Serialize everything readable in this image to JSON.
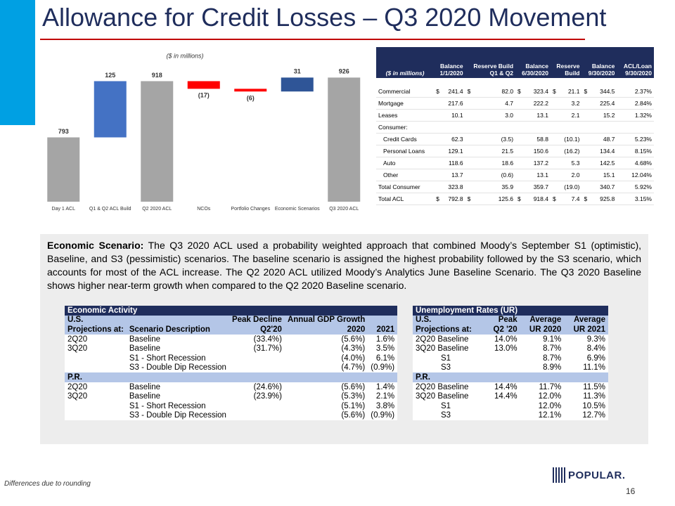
{
  "header": {
    "title": "Allowance for Credit Losses – Q3 2020 Movement"
  },
  "chart_data": {
    "type": "waterfall",
    "subtitle": "($ in millions)",
    "categories": [
      "Day 1 ACL",
      "Q1 & Q2 ACL Build",
      "Q2 2020 ACL",
      "NCOs",
      "Portfolio Changes",
      "Economic Scenarios",
      "Q3 2020 ACL"
    ],
    "values": [
      793,
      125,
      918,
      -17,
      -6,
      31,
      926
    ],
    "value_labels": [
      "793",
      "125",
      "918",
      "(17)",
      "(6)",
      "31",
      "926"
    ],
    "totals": [
      true,
      false,
      true,
      false,
      false,
      false,
      true
    ],
    "colors": [
      "#a5a5a5",
      "#4472c4",
      "#a5a5a5",
      "#ff0000",
      "#ff0000",
      "#2f5597",
      "#a5a5a5"
    ],
    "ylim": [
      650,
      1000
    ]
  },
  "acl_table": {
    "columns": [
      {
        "lines": [
          "($ in millions)"
        ]
      },
      {
        "lines": [
          "Balance",
          "1/1/2020"
        ]
      },
      {
        "lines": [
          "Reserve Build",
          "Q1 & Q2"
        ]
      },
      {
        "lines": [
          "Balance",
          "6/30/2020"
        ]
      },
      {
        "lines": [
          "Reserve",
          "Build"
        ]
      },
      {
        "lines": [
          "Balance",
          "9/30/2020"
        ]
      },
      {
        "lines": [
          "ACL/Loan",
          "9/30/2020"
        ]
      }
    ],
    "rows": [
      {
        "label": "Commercial",
        "cells": [
          {
            "sign": "$",
            "value": "241.4"
          },
          {
            "sign": "$",
            "value": "82.0"
          },
          {
            "sign": "$",
            "value": "323.4"
          },
          {
            "sign": "$",
            "value": "21.1"
          },
          {
            "sign": "$",
            "value": "344.5"
          },
          "2.37%"
        ]
      },
      {
        "label": "Mortgage",
        "cells": [
          "217.6",
          "4.7",
          "222.2",
          "3.2",
          "225.4",
          "2.84%"
        ]
      },
      {
        "label": "Leases",
        "cells": [
          "10.1",
          "3.0",
          "13.1",
          "2.1",
          "15.2",
          "1.32%"
        ]
      },
      {
        "label": "Consumer:",
        "cells": []
      },
      {
        "label": "Credit Cards",
        "indent": true,
        "cells": [
          "62.3",
          "(3.5)",
          "58.8",
          "(10.1)",
          "48.7",
          "5.23%"
        ]
      },
      {
        "label": "Personal Loans",
        "indent": true,
        "cells": [
          "129.1",
          "21.5",
          "150.6",
          "(16.2)",
          "134.4",
          "8.15%"
        ]
      },
      {
        "label": "Auto",
        "indent": true,
        "cells": [
          "118.6",
          "18.6",
          "137.2",
          "5.3",
          "142.5",
          "4.68%"
        ]
      },
      {
        "label": "Other",
        "indent": true,
        "cells": [
          "13.7",
          "(0.6)",
          "13.1",
          "2.0",
          "15.1",
          "12.04%"
        ]
      },
      {
        "label": "Total Consumer",
        "cells": [
          "323.8",
          "35.9",
          "359.7",
          "(19.0)",
          "340.7",
          "5.92%"
        ]
      },
      {
        "label": "Total ACL",
        "cells": [
          {
            "sign": "$",
            "value": "792.8"
          },
          {
            "sign": "$",
            "value": "125.6"
          },
          {
            "sign": "$",
            "value": "918.4"
          },
          {
            "sign": "$",
            "value": "7.4"
          },
          {
            "sign": "$",
            "value": "925.8"
          },
          "3.15%"
        ]
      }
    ]
  },
  "scenario_text": {
    "lead": "Economic Scenario:",
    "body": "The Q3 2020 ACL used a probability weighted approach that combined Moody’s September S1 (optimistic), Baseline, and S3 (pessimistic) scenarios. The baseline scenario is assigned the highest probability followed by the S3 scenario, which accounts for most of the ACL increase. The Q2 2020 ACL utilized Moody’s Analytics June Baseline Scenario. The Q3 2020 Baseline shows higher near-term growth when compared to the Q2 2020 Baseline scenario."
  },
  "economic_table": {
    "title": "Economic Activity",
    "header_rows": [
      [
        "U.S.",
        null,
        "Peak Decline",
        "Annual GDP Growth",
        null
      ],
      [
        "Projections at:",
        "Scenario Description",
        "Q2'20",
        "2020",
        "2021"
      ]
    ],
    "sections": [
      {
        "name": null,
        "rows": [
          [
            "2Q20",
            "Baseline",
            "(33.4%)",
            "(5.6%)",
            "1.6%"
          ],
          [
            "3Q20",
            "Baseline",
            "(31.7%)",
            "(4.3%)",
            "3.5%"
          ],
          [
            null,
            "S1 - Short Recession",
            null,
            "(4.0%)",
            "6.1%"
          ],
          [
            null,
            "S3 - Double Dip Recession",
            null,
            "(4.7%)",
            "(0.9%)"
          ]
        ]
      },
      {
        "name": "P.R.",
        "rows": [
          [
            "2Q20",
            "Baseline",
            "(24.6%)",
            "(5.6%)",
            "1.4%"
          ],
          [
            "3Q20",
            "Baseline",
            "(23.9%)",
            "(5.3%)",
            "2.1%"
          ],
          [
            null,
            "S1 - Short Recession",
            null,
            "(5.1%)",
            "3.8%"
          ],
          [
            null,
            "S3 - Double Dip Recession",
            null,
            "(5.6%)",
            "(0.9%)"
          ]
        ]
      }
    ]
  },
  "unemployment_table": {
    "title": "Unemployment Rates (UR)",
    "header_rows": [
      [
        "U.S.",
        "Peak",
        "Average",
        "Average"
      ],
      [
        "Projections at:",
        "Q2 '20",
        "UR 2020",
        "UR 2021"
      ]
    ],
    "sections": [
      {
        "name": null,
        "rows": [
          [
            "2Q20 Baseline",
            "14.0%",
            "9.1%",
            "9.3%"
          ],
          [
            "3Q20 Baseline",
            "13.0%",
            "8.7%",
            "8.4%"
          ],
          [
            "S1",
            null,
            "8.7%",
            "6.9%"
          ],
          [
            "S3",
            null,
            "8.9%",
            "11.1%"
          ]
        ]
      },
      {
        "name": "P.R.",
        "rows": [
          [
            "2Q20 Baseline",
            "14.4%",
            "11.7%",
            "11.5%"
          ],
          [
            "3Q20 Baseline",
            "14.4%",
            "12.0%",
            "11.3%"
          ],
          [
            "S1",
            null,
            "12.0%",
            "10.5%"
          ],
          [
            "S3",
            null,
            "12.1%",
            "12.7%"
          ]
        ]
      }
    ]
  },
  "footer": {
    "note": "Differences due to rounding",
    "page": "16",
    "logo": "POPULAR."
  }
}
